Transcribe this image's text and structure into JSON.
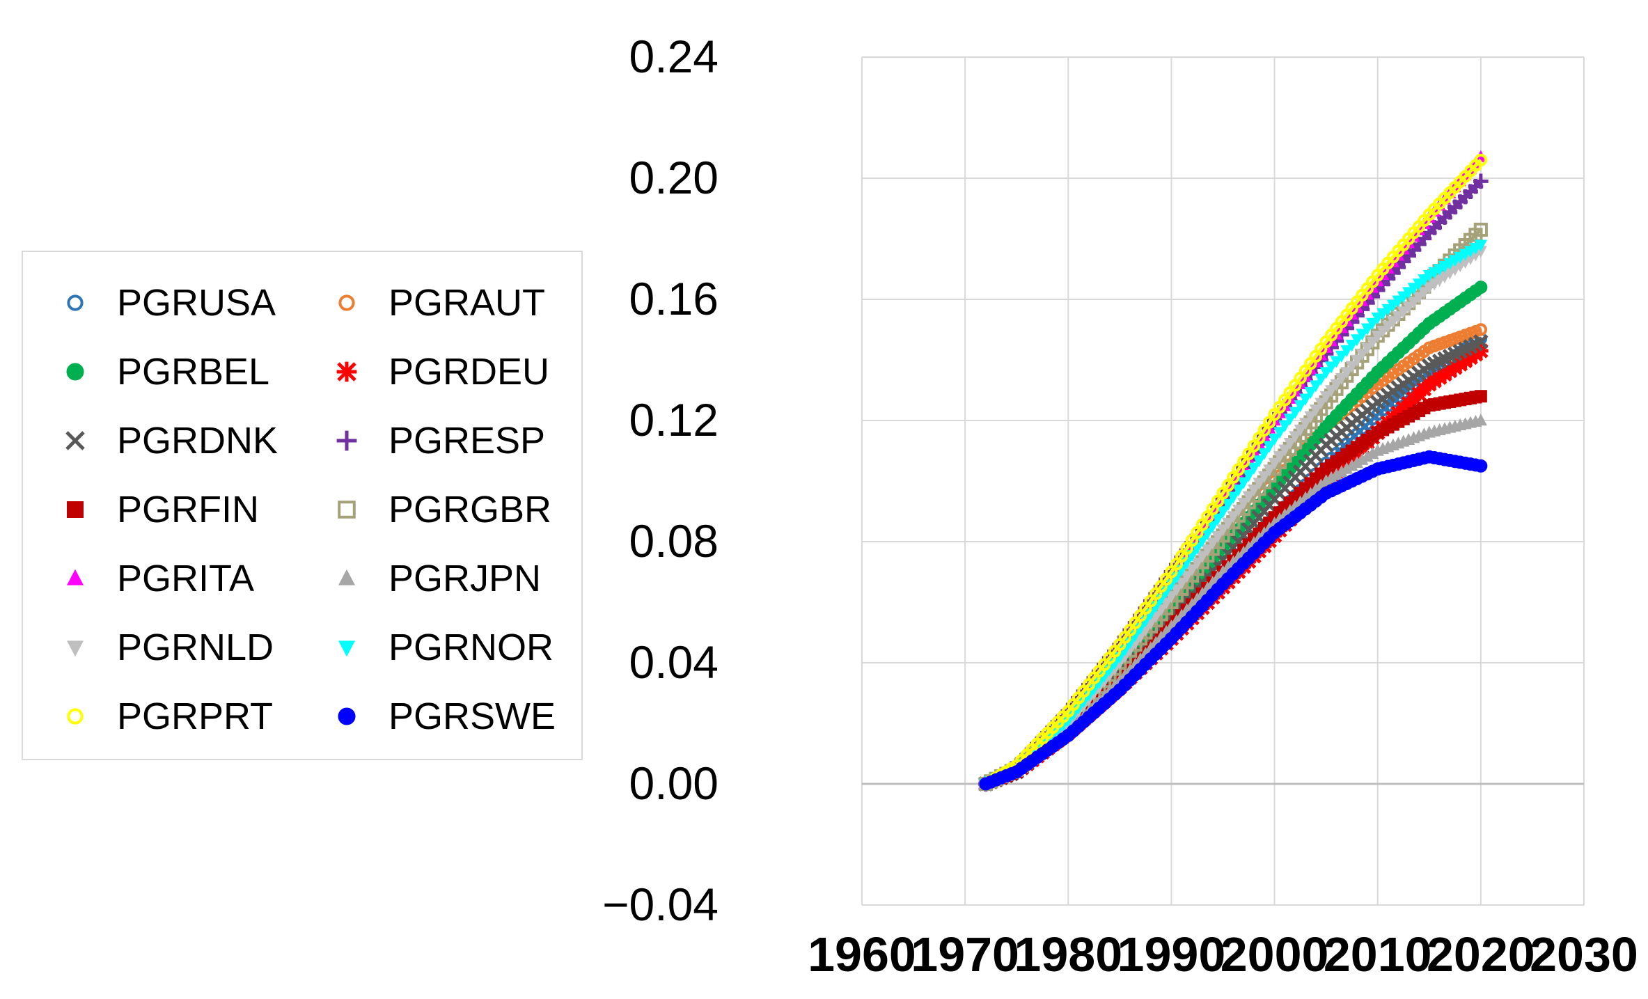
{
  "chart_data": {
    "type": "line",
    "title": "",
    "xlabel": "",
    "ylabel": "",
    "xlim": [
      1960,
      2030
    ],
    "ylim": [
      -0.04,
      0.24
    ],
    "x_ticks": [
      "1960",
      "1970",
      "1980",
      "1990",
      "2000",
      "2010",
      "2020",
      "2030"
    ],
    "y_ticks": [
      "−0.04",
      "0.00",
      "0.04",
      "0.08",
      "0.12",
      "0.16",
      "0.20",
      "0.24"
    ],
    "x_tick_values": [
      1960,
      1970,
      1980,
      1990,
      2000,
      2010,
      2020,
      2030
    ],
    "y_tick_values": [
      -0.04,
      0,
      0.04,
      0.08,
      0.12,
      0.16,
      0.2,
      0.24
    ],
    "grid": true,
    "legend_position": "left",
    "x": [
      1972,
      1975,
      1980,
      1985,
      1990,
      1995,
      2000,
      2005,
      2010,
      2015,
      2020
    ],
    "series": [
      {
        "name": "PGRUSA",
        "color": "#2e75b6",
        "marker": "circle-open",
        "values": [
          0,
          0.004,
          0.018,
          0.034,
          0.052,
          0.07,
          0.088,
          0.106,
          0.122,
          0.136,
          0.147
        ]
      },
      {
        "name": "PGRAUT",
        "color": "#ed7d31",
        "marker": "circle-open",
        "values": [
          0,
          0.005,
          0.02,
          0.04,
          0.06,
          0.08,
          0.1,
          0.118,
          0.132,
          0.144,
          0.15
        ]
      },
      {
        "name": "PGRBEL",
        "color": "#00b050",
        "marker": "circle-filled",
        "values": [
          0,
          0.005,
          0.02,
          0.038,
          0.058,
          0.078,
          0.098,
          0.118,
          0.136,
          0.152,
          0.164
        ]
      },
      {
        "name": "PGRDEU",
        "color": "#ff0000",
        "marker": "star",
        "values": [
          0,
          0.004,
          0.017,
          0.032,
          0.048,
          0.065,
          0.082,
          0.1,
          0.116,
          0.132,
          0.143
        ]
      },
      {
        "name": "PGRDNK",
        "color": "#595959",
        "marker": "x",
        "values": [
          0,
          0.004,
          0.019,
          0.036,
          0.055,
          0.074,
          0.094,
          0.112,
          0.126,
          0.138,
          0.146
        ]
      },
      {
        "name": "PGRESP",
        "color": "#7030a0",
        "marker": "plus",
        "values": [
          0,
          0.006,
          0.024,
          0.046,
          0.07,
          0.094,
          0.12,
          0.142,
          0.163,
          0.182,
          0.199
        ]
      },
      {
        "name": "PGRFIN",
        "color": "#c00000",
        "marker": "square-filled",
        "values": [
          0,
          0.004,
          0.018,
          0.034,
          0.052,
          0.07,
          0.088,
          0.104,
          0.116,
          0.125,
          0.128
        ]
      },
      {
        "name": "PGRGBR",
        "color": "#a5a27a",
        "marker": "square-open",
        "values": [
          0,
          0.005,
          0.02,
          0.04,
          0.06,
          0.082,
          0.104,
          0.126,
          0.148,
          0.166,
          0.183
        ]
      },
      {
        "name": "PGRITA",
        "color": "#ff00ff",
        "marker": "triangle-up",
        "values": [
          0,
          0.005,
          0.022,
          0.044,
          0.068,
          0.094,
          0.12,
          0.144,
          0.166,
          0.187,
          0.207
        ]
      },
      {
        "name": "PGRJPN",
        "color": "#a6a6a6",
        "marker": "triangle-up",
        "values": [
          0,
          0.004,
          0.017,
          0.034,
          0.052,
          0.07,
          0.086,
          0.1,
          0.11,
          0.116,
          0.12
        ]
      },
      {
        "name": "PGRNLD",
        "color": "#bfbfbf",
        "marker": "triangle-down",
        "values": [
          0,
          0.005,
          0.02,
          0.04,
          0.062,
          0.084,
          0.106,
          0.128,
          0.148,
          0.164,
          0.176
        ]
      },
      {
        "name": "PGRNOR",
        "color": "#00ffff",
        "marker": "triangle-down",
        "values": [
          0,
          0.005,
          0.021,
          0.042,
          0.066,
          0.09,
          0.114,
          0.136,
          0.154,
          0.168,
          0.178
        ]
      },
      {
        "name": "PGRPRT",
        "color": "#ffff00",
        "marker": "circle-open",
        "values": [
          0,
          0.006,
          0.024,
          0.046,
          0.07,
          0.096,
          0.122,
          0.146,
          0.168,
          0.188,
          0.206
        ]
      },
      {
        "name": "PGRSWE",
        "color": "#0000ff",
        "marker": "circle-filled",
        "values": [
          0,
          0.004,
          0.016,
          0.031,
          0.048,
          0.066,
          0.083,
          0.096,
          0.104,
          0.108,
          0.105
        ]
      }
    ]
  },
  "legend": {
    "items": [
      {
        "label": "PGRUSA",
        "series": 0
      },
      {
        "label": "PGRAUT",
        "series": 1
      },
      {
        "label": "PGRBEL",
        "series": 2
      },
      {
        "label": "PGRDEU",
        "series": 3
      },
      {
        "label": "PGRDNK",
        "series": 4
      },
      {
        "label": "PGRESP",
        "series": 5
      },
      {
        "label": "PGRFIN",
        "series": 6
      },
      {
        "label": "PGRGBR",
        "series": 7
      },
      {
        "label": "PGRITA",
        "series": 8
      },
      {
        "label": "PGRJPN",
        "series": 9
      },
      {
        "label": "PGRNLD",
        "series": 10
      },
      {
        "label": "PGRNOR",
        "series": 11
      },
      {
        "label": "PGRPRT",
        "series": 12
      },
      {
        "label": "PGRSWE",
        "series": 13
      }
    ]
  }
}
